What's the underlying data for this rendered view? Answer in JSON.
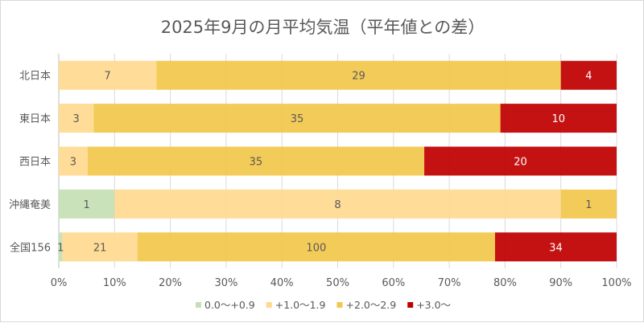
{
  "chart_data": {
    "type": "bar",
    "orientation": "horizontal",
    "stacked": "percent",
    "title": "2025年9月の月平均気温（平年値との差）",
    "categories": [
      "北日本",
      "東日本",
      "西日本",
      "沖縄奄美",
      "全国156"
    ],
    "series": [
      {
        "name": "0.0〜+0.9",
        "color": "#c5e0b4",
        "values": [
          0,
          0,
          0,
          1,
          1
        ]
      },
      {
        "name": "+1.0〜1.9",
        "color": "#ffd98f",
        "values": [
          7,
          3,
          3,
          8,
          21
        ]
      },
      {
        "name": "+2.0〜2.9",
        "color": "#f2c74b",
        "values": [
          29,
          35,
          35,
          1,
          100
        ]
      },
      {
        "name": "+3.0〜",
        "color": "#c00000",
        "values": [
          4,
          10,
          20,
          0,
          34
        ]
      }
    ],
    "xticks": [
      "0%",
      "10%",
      "20%",
      "30%",
      "40%",
      "50%",
      "60%",
      "70%",
      "80%",
      "90%",
      "100%"
    ],
    "xlim": [
      0,
      100
    ],
    "grid": true,
    "legend": "bottom"
  }
}
